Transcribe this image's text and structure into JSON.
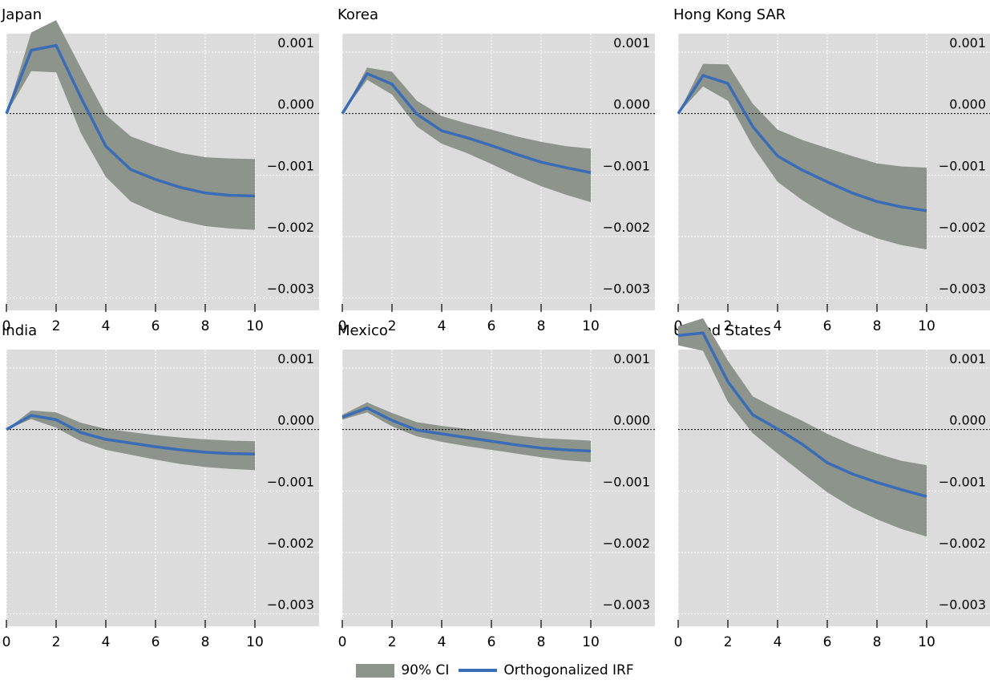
{
  "colors": {
    "ci": "#8c948c",
    "irf": "#3a6db5",
    "panel": "#dcdcdc",
    "grid": "#ffffff"
  },
  "legend": {
    "ci_label": "90% CI",
    "irf_label": "Orthogonalized IRF"
  },
  "chart_data": [
    {
      "type": "line",
      "title": "Japan",
      "x": [
        0,
        1,
        2,
        3,
        4,
        5,
        6,
        7,
        8,
        9,
        10
      ],
      "ylim": [
        -0.0032,
        0.0013
      ],
      "yticks": [
        "0.001",
        "0.000",
        "−0.001",
        "−0.002",
        "−0.003"
      ],
      "ytick_values": [
        0.001,
        0,
        -0.001,
        -0.002,
        -0.003
      ],
      "xticks": [
        0,
        2,
        4,
        6,
        8,
        10
      ],
      "grid": true,
      "legend": "bottom-center",
      "series": [
        {
          "name": "Orthogonalized IRF",
          "values": [
            0,
            0.00103,
            0.00111,
            0.00026,
            -0.00053,
            -0.00091,
            -0.00107,
            -0.0012,
            -0.00129,
            -0.00133,
            -0.00134
          ]
        },
        {
          "name": "90% CI lower",
          "values": [
            0,
            0.00069,
            0.00067,
            -0.00032,
            -0.00103,
            -0.00143,
            -0.00161,
            -0.00174,
            -0.00183,
            -0.00187,
            -0.00189
          ]
        },
        {
          "name": "90% CI upper",
          "values": [
            0,
            0.00132,
            0.00152,
            0.00074,
            -2e-05,
            -0.00037,
            -0.00052,
            -0.00064,
            -0.00071,
            -0.00073,
            -0.00074
          ]
        }
      ]
    },
    {
      "type": "line",
      "title": "Korea",
      "x": [
        0,
        1,
        2,
        3,
        4,
        5,
        6,
        7,
        8,
        9,
        10
      ],
      "ylim": [
        -0.0032,
        0.0013
      ],
      "yticks": [
        "0.001",
        "0.000",
        "−0.001",
        "−0.002",
        "−0.003"
      ],
      "ytick_values": [
        0.001,
        0,
        -0.001,
        -0.002,
        -0.003
      ],
      "xticks": [
        0,
        2,
        4,
        6,
        8,
        10
      ],
      "grid": true,
      "legend": "bottom-center",
      "series": [
        {
          "name": "Orthogonalized IRF",
          "values": [
            0,
            0.00065,
            0.00048,
            -1e-05,
            -0.00028,
            -0.00039,
            -0.00052,
            -0.00066,
            -0.00079,
            -0.00088,
            -0.00096
          ]
        },
        {
          "name": "90% CI lower",
          "values": [
            0,
            0.00055,
            0.00031,
            -0.00021,
            -0.00049,
            -0.00064,
            -0.00082,
            -0.00101,
            -0.00118,
            -0.00132,
            -0.00144
          ]
        },
        {
          "name": "90% CI upper",
          "values": [
            0,
            0.00075,
            0.00068,
            0.00021,
            -4e-05,
            -0.00016,
            -0.00026,
            -0.00037,
            -0.00046,
            -0.00053,
            -0.00057
          ]
        }
      ]
    },
    {
      "type": "line",
      "title": "Hong Kong SAR",
      "x": [
        0,
        1,
        2,
        3,
        4,
        5,
        6,
        7,
        8,
        9,
        10
      ],
      "ylim": [
        -0.0032,
        0.0013
      ],
      "yticks": [
        "0.001",
        "0.000",
        "−0.001",
        "−0.002",
        "−0.003"
      ],
      "ytick_values": [
        0.001,
        0,
        -0.001,
        -0.002,
        -0.003
      ],
      "xticks": [
        0,
        2,
        4,
        6,
        8,
        10
      ],
      "grid": true,
      "legend": "bottom-center",
      "series": [
        {
          "name": "Orthogonalized IRF",
          "values": [
            0,
            0.00062,
            0.00049,
            -0.00021,
            -0.00069,
            -0.00092,
            -0.00111,
            -0.00129,
            -0.00143,
            -0.00152,
            -0.00158
          ]
        },
        {
          "name": "90% CI lower",
          "values": [
            0,
            0.00044,
            0.00021,
            -0.00053,
            -0.00111,
            -0.00141,
            -0.00166,
            -0.00187,
            -0.00203,
            -0.00214,
            -0.00221
          ]
        },
        {
          "name": "90% CI upper",
          "values": [
            0,
            0.00081,
            0.0008,
            0.00016,
            -0.00026,
            -0.00043,
            -0.00056,
            -0.00069,
            -0.00081,
            -0.00086,
            -0.00088
          ]
        }
      ]
    },
    {
      "type": "line",
      "title": "India",
      "x": [
        0,
        1,
        2,
        3,
        4,
        5,
        6,
        7,
        8,
        9,
        10
      ],
      "ylim": [
        -0.0032,
        0.0013
      ],
      "yticks": [
        "0.001",
        "0.000",
        "−0.001",
        "−0.002",
        "−0.003"
      ],
      "ytick_values": [
        0.001,
        0,
        -0.001,
        -0.002,
        -0.003
      ],
      "xticks": [
        0,
        2,
        4,
        6,
        8,
        10
      ],
      "grid": true,
      "legend": "bottom-center",
      "series": [
        {
          "name": "Orthogonalized IRF",
          "values": [
            0,
            0.00023,
            0.00016,
            -5e-05,
            -0.00016,
            -0.00022,
            -0.00028,
            -0.00033,
            -0.00037,
            -0.00039,
            -0.0004
          ]
        },
        {
          "name": "90% CI lower",
          "values": [
            0,
            0.00017,
            3e-05,
            -0.00019,
            -0.00033,
            -0.00041,
            -0.00049,
            -0.00056,
            -0.00061,
            -0.00064,
            -0.00066
          ]
        },
        {
          "name": "90% CI upper",
          "values": [
            0,
            0.00031,
            0.00028,
            0.00011,
            1e-05,
            -4e-05,
            -9e-05,
            -0.00013,
            -0.00016,
            -0.00018,
            -0.00019
          ]
        }
      ]
    },
    {
      "type": "line",
      "title": "Mexico",
      "x": [
        0,
        1,
        2,
        3,
        4,
        5,
        6,
        7,
        8,
        9,
        10
      ],
      "ylim": [
        -0.0032,
        0.0013
      ],
      "yticks": [
        "0.001",
        "0.000",
        "−0.001",
        "−0.002",
        "−0.003"
      ],
      "ytick_values": [
        0.001,
        0,
        -0.001,
        -0.002,
        -0.003
      ],
      "xticks": [
        0,
        2,
        4,
        6,
        8,
        10
      ],
      "grid": true,
      "legend": "bottom-center",
      "series": [
        {
          "name": "Orthogonalized IRF",
          "values": [
            0.0002,
            0.00035,
            0.00015,
            -1e-05,
            -7e-05,
            -0.00013,
            -0.00019,
            -0.00025,
            -0.0003,
            -0.00033,
            -0.00035
          ]
        },
        {
          "name": "90% CI lower",
          "values": [
            0.00016,
            0.00028,
            5e-05,
            -0.00011,
            -0.0002,
            -0.00027,
            -0.00033,
            -0.00039,
            -0.00045,
            -0.0005,
            -0.00053
          ]
        },
        {
          "name": "90% CI upper",
          "values": [
            0.00024,
            0.00044,
            0.00027,
            0.00012,
            6e-05,
            1e-05,
            -4e-05,
            -0.0001,
            -0.00014,
            -0.00016,
            -0.00018
          ]
        }
      ]
    },
    {
      "type": "line",
      "title": "United States",
      "x": [
        0,
        1,
        2,
        3,
        4,
        5,
        6,
        7,
        8,
        9,
        10
      ],
      "ylim": [
        -0.0032,
        0.0013
      ],
      "yticks": [
        "0.001",
        "0.000",
        "−0.001",
        "−0.002",
        "−0.003"
      ],
      "ytick_values": [
        0.001,
        0,
        -0.001,
        -0.002,
        -0.003
      ],
      "xticks": [
        0,
        2,
        4,
        6,
        8,
        10
      ],
      "grid": true,
      "legend": "bottom-center",
      "series": [
        {
          "name": "Orthogonalized IRF",
          "values": [
            0.00153,
            0.00157,
            0.00078,
            0.00024,
            1e-05,
            -0.00024,
            -0.00054,
            -0.00072,
            -0.00086,
            -0.00098,
            -0.00109
          ]
        },
        {
          "name": "90% CI lower",
          "values": [
            0.00137,
            0.00128,
            0.00045,
            -6e-05,
            -0.00039,
            -0.00071,
            -0.00102,
            -0.00127,
            -0.00146,
            -0.00162,
            -0.00174
          ]
        },
        {
          "name": "90% CI upper",
          "values": [
            0.00168,
            0.00181,
            0.00112,
            0.00054,
            0.00033,
            0.00014,
            -7e-05,
            -0.00025,
            -0.00039,
            -0.00051,
            -0.00058
          ]
        }
      ]
    }
  ]
}
